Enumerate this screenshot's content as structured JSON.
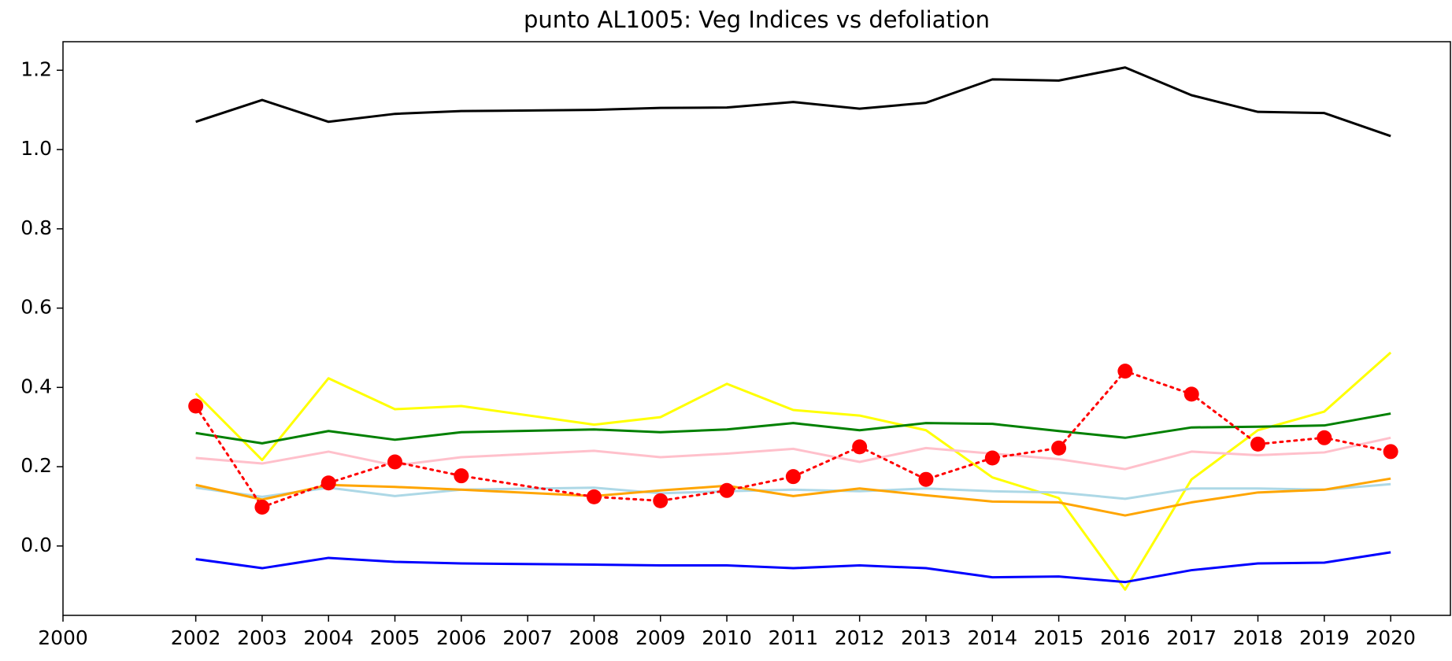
{
  "chart_data": {
    "type": "line",
    "title": "punto AL1005: Veg Indices vs defoliation",
    "x": [
      2002,
      2003,
      2004,
      2005,
      2006,
      2008,
      2009,
      2010,
      2011,
      2012,
      2013,
      2014,
      2015,
      2016,
      2017,
      2018,
      2019,
      2020
    ],
    "series": [
      {
        "color": "#000000",
        "values": [
          1.07,
          1.125,
          1.07,
          1.09,
          1.097,
          1.1,
          1.105,
          1.106,
          1.12,
          1.103,
          1.118,
          1.177,
          1.174,
          1.207,
          1.137,
          1.095,
          1.092,
          1.034
        ]
      },
      {
        "color": "#ffff00",
        "values": [
          0.385,
          0.217,
          0.423,
          0.345,
          0.353,
          0.306,
          0.325,
          0.409,
          0.343,
          0.329,
          0.292,
          0.173,
          0.121,
          -0.11,
          0.168,
          0.292,
          0.339,
          0.488
        ]
      },
      {
        "color": "#008000",
        "values": [
          0.285,
          0.259,
          0.29,
          0.268,
          0.287,
          0.294,
          0.287,
          0.294,
          0.31,
          0.292,
          0.31,
          0.308,
          0.29,
          0.273,
          0.299,
          0.301,
          0.304,
          0.334
        ]
      },
      {
        "color": "#ffc0cb",
        "values": [
          0.222,
          0.208,
          0.238,
          0.203,
          0.224,
          0.24,
          0.224,
          0.233,
          0.245,
          0.212,
          0.247,
          0.233,
          0.219,
          0.194,
          0.238,
          0.229,
          0.236,
          0.273
        ]
      },
      {
        "color": "#add8e6",
        "values": [
          0.147,
          0.124,
          0.147,
          0.126,
          0.142,
          0.147,
          0.133,
          0.138,
          0.142,
          0.138,
          0.145,
          0.138,
          0.135,
          0.119,
          0.145,
          0.145,
          0.142,
          0.156
        ]
      },
      {
        "color": "#ffa500",
        "values": [
          0.154,
          0.117,
          0.154,
          0.149,
          0.142,
          0.126,
          0.14,
          0.152,
          0.126,
          0.145,
          0.128,
          0.112,
          0.11,
          0.077,
          0.11,
          0.135,
          0.142,
          0.17
        ]
      },
      {
        "color": "#0000ff",
        "values": [
          -0.033,
          -0.056,
          -0.03,
          -0.04,
          -0.044,
          -0.047,
          -0.049,
          -0.049,
          -0.056,
          -0.049,
          -0.056,
          -0.079,
          -0.077,
          -0.091,
          -0.061,
          -0.044,
          -0.042,
          -0.016
        ]
      },
      {
        "color": "#ff0000",
        "style": "dotted",
        "marker": true,
        "values": [
          0.353,
          0.098,
          0.159,
          0.212,
          0.177,
          0.124,
          0.114,
          0.14,
          0.175,
          0.25,
          0.168,
          0.222,
          0.247,
          0.441,
          0.383,
          0.257,
          0.273,
          0.238
        ]
      }
    ],
    "xlim": [
      2000,
      2020.9
    ],
    "xticks": [
      2000,
      2002,
      2003,
      2004,
      2005,
      2006,
      2007,
      2008,
      2009,
      2010,
      2011,
      2012,
      2013,
      2014,
      2015,
      2016,
      2017,
      2018,
      2019,
      2020
    ],
    "ylim": [
      -0.175,
      1.272
    ],
    "yticks": [
      {
        "value": 0,
        "label": "0.0"
      },
      0.2,
      0.4,
      0.6,
      0.8,
      {
        "value": 1,
        "label": "1.0"
      },
      1.2
    ],
    "grid": false
  }
}
